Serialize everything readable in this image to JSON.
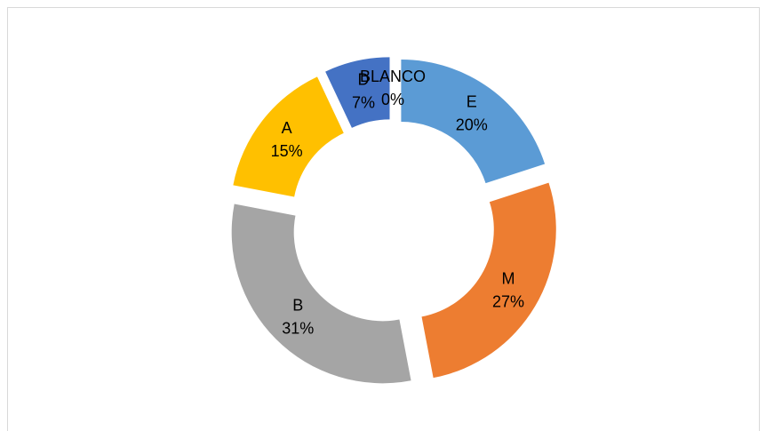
{
  "chart_data": {
    "type": "donut",
    "categories": [
      "E",
      "M",
      "B",
      "A",
      "D",
      "BLANCO"
    ],
    "values": [
      20,
      27,
      31,
      15,
      7,
      0
    ],
    "value_labels": [
      "20%",
      "27%",
      "31%",
      "15%",
      "7%",
      "0%"
    ],
    "colors": [
      "#5b9bd5",
      "#ed7d31",
      "#a5a5a5",
      "#ffc000",
      "#4472c4",
      "#70ad47"
    ],
    "exploded": true
  }
}
